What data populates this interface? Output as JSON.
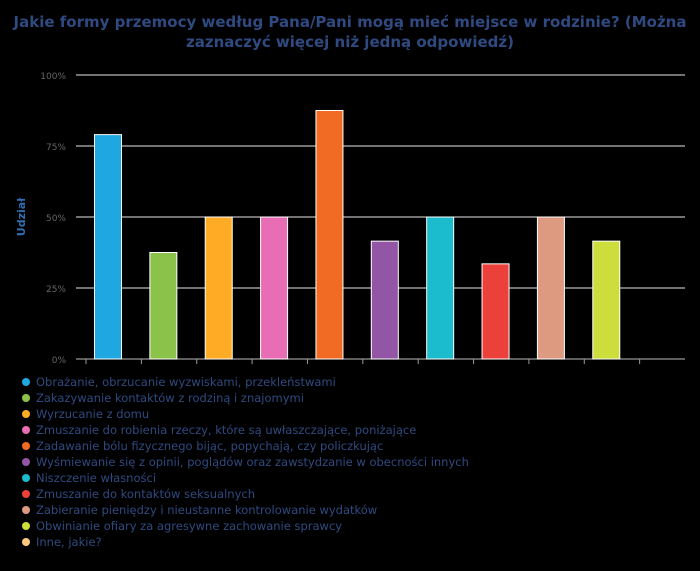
{
  "chart_data": {
    "type": "bar",
    "title_lines": [
      "Jakie formy przemocy według Pana/Pani mogą mieć miejsce w rodzinie? (Można",
      "zaznaczyć więcej niż jedną odpowiedź)"
    ],
    "ylabel": "Udział",
    "ylim": [
      0,
      100
    ],
    "yticks": [
      0,
      25,
      50,
      75,
      100
    ],
    "ytick_labels": [
      "0%",
      "25%",
      "50%",
      "75%",
      "100%"
    ],
    "grid": true,
    "legend_position": "bottom-left",
    "categories": [
      "Obrażanie, obrzucanie wyzwiskami, przekleństwami",
      "Zakazywanie kontaktów z rodziną i znajomymi",
      "Wyrzucanie z domu",
      "Zmuszanie do robienia rzeczy, które są uwłaszczające, poniżające",
      "Zadawanie bólu fizycznego bijąc, popychają, czy policzkując",
      "Wyśmiewanie się z opinii, poglądów oraz zawstydzanie w obecności innych",
      "Niszczenie własności",
      "Zmuszanie do kontaktów seksualnych",
      "Zabieranie pieniędzy i nieustanne kontrolowanie wydatków",
      "Obwinianie ofiary za agresywne zachowanie sprawcy",
      "Inne, jakie?"
    ],
    "values": [
      79,
      37.5,
      50,
      50,
      87.5,
      41.5,
      50,
      33.5,
      50,
      41.5,
      0
    ],
    "colors": [
      "#1ea7e1",
      "#8bc34a",
      "#ffab25",
      "#e86db4",
      "#f26b24",
      "#9356a6",
      "#1bbccd",
      "#ec403a",
      "#dd9a80",
      "#cddd3b",
      "#ffc980"
    ]
  }
}
